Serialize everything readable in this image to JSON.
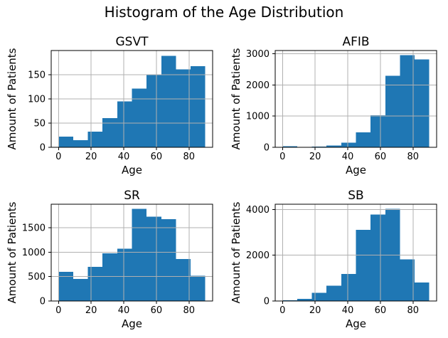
{
  "figure": {
    "suptitle": "Histogram of the Age Distribution",
    "bar_color": "#1f77b4",
    "grid_color": "#b0b0b0",
    "spine_color": "#000000",
    "tick_color": "#000000",
    "text_color": "#000000",
    "background": "#ffffff"
  },
  "chart_data": [
    {
      "type": "bar",
      "title": "GSVT",
      "xlabel": "Age",
      "ylabel": "Amount of Patients",
      "bin_edges": [
        0,
        9,
        18,
        27,
        36,
        45,
        54,
        63,
        72,
        81,
        90
      ],
      "values": [
        22,
        15,
        32,
        60,
        95,
        121,
        149,
        189,
        161,
        168
      ],
      "xticks": [
        0,
        20,
        40,
        60,
        80
      ],
      "xtick_labels": [
        "0",
        "20",
        "40",
        "60",
        "80"
      ],
      "yticks": [
        0,
        50,
        100,
        150
      ],
      "ytick_labels": [
        "0",
        "50",
        "100",
        "150"
      ],
      "xlim": [
        -4.5,
        94.5
      ],
      "ylim": [
        0,
        200
      ],
      "grid": true,
      "legend": false
    },
    {
      "type": "bar",
      "title": "AFIB",
      "xlabel": "Age",
      "ylabel": "Amount of Patients",
      "bin_edges": [
        0,
        9,
        18,
        27,
        36,
        45,
        54,
        63,
        72,
        81,
        90
      ],
      "values": [
        35,
        8,
        25,
        60,
        150,
        480,
        1030,
        2290,
        2950,
        2820
      ],
      "xticks": [
        0,
        20,
        40,
        60,
        80
      ],
      "xtick_labels": [
        "0",
        "20",
        "40",
        "60",
        "80"
      ],
      "yticks": [
        0,
        1000,
        2000,
        3000
      ],
      "ytick_labels": [
        "0",
        "1000",
        "2000",
        "3000"
      ],
      "xlim": [
        -4.5,
        94.5
      ],
      "ylim": [
        0,
        3100
      ],
      "grid": true,
      "legend": false
    },
    {
      "type": "bar",
      "title": "SR",
      "xlabel": "Age",
      "ylabel": "Amount of Patients",
      "bin_edges": [
        0,
        9,
        18,
        27,
        36,
        45,
        54,
        63,
        72,
        81,
        90
      ],
      "values": [
        600,
        450,
        700,
        980,
        1070,
        1890,
        1730,
        1680,
        860,
        520
      ],
      "xticks": [
        0,
        20,
        40,
        60,
        80
      ],
      "xtick_labels": [
        "0",
        "20",
        "40",
        "60",
        "80"
      ],
      "yticks": [
        0,
        500,
        1000,
        1500
      ],
      "ytick_labels": [
        "0",
        "500",
        "1000",
        "1500"
      ],
      "xlim": [
        -4.5,
        94.5
      ],
      "ylim": [
        0,
        1985
      ],
      "grid": true,
      "legend": false
    },
    {
      "type": "bar",
      "title": "SB",
      "xlabel": "Age",
      "ylabel": "Amount of Patients",
      "bin_edges": [
        0,
        9,
        18,
        27,
        36,
        45,
        54,
        63,
        72,
        81,
        90
      ],
      "values": [
        30,
        95,
        350,
        675,
        1185,
        3115,
        3780,
        4030,
        1820,
        810
      ],
      "xticks": [
        0,
        20,
        40,
        60,
        80
      ],
      "xtick_labels": [
        "0",
        "20",
        "40",
        "60",
        "80"
      ],
      "yticks": [
        0,
        2000,
        4000
      ],
      "ytick_labels": [
        "0",
        "2000",
        "4000"
      ],
      "xlim": [
        -4.5,
        94.5
      ],
      "ylim": [
        0,
        4230
      ],
      "grid": true,
      "legend": false
    }
  ]
}
